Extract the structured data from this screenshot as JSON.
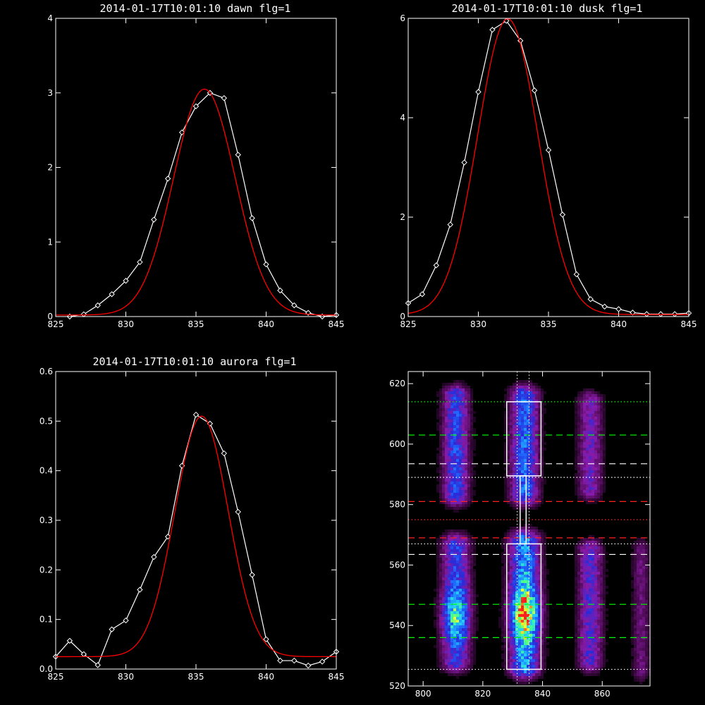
{
  "chart_data": [
    {
      "type": "line",
      "title": "2014-01-17T10:01:10 dawn flg=1",
      "xlim": [
        825,
        845
      ],
      "ylim": [
        0,
        4
      ],
      "xticks": [
        825,
        830,
        835,
        840,
        845
      ],
      "yticks": [
        0,
        1,
        2,
        3,
        4
      ],
      "series": [
        {
          "color": "#ffffff",
          "marker": "diamond",
          "x": [
            826,
            827,
            828,
            829,
            830,
            831,
            832,
            833,
            834,
            835,
            836,
            837,
            838,
            839,
            840,
            841,
            842,
            843,
            844,
            845
          ],
          "y": [
            0.0,
            0.03,
            0.15,
            0.3,
            0.48,
            0.73,
            1.3,
            1.85,
            2.47,
            2.82,
            3.0,
            2.93,
            2.17,
            1.32,
            0.7,
            0.35,
            0.15,
            0.05,
            0.0,
            0.02
          ]
        },
        {
          "color": "#ff0000",
          "marker": "none",
          "gaussian": {
            "amplitude": 3.03,
            "center": 835.6,
            "sigma": 2.2,
            "baseline": 0.02
          }
        }
      ]
    },
    {
      "type": "line",
      "title": "2014-01-17T10:01:10 dusk flg=1",
      "xlim": [
        825,
        845
      ],
      "ylim": [
        0,
        6
      ],
      "xticks": [
        825,
        830,
        835,
        840,
        845
      ],
      "yticks": [
        0,
        2,
        4,
        6
      ],
      "series": [
        {
          "color": "#ffffff",
          "marker": "diamond",
          "x": [
            825,
            826,
            827,
            828,
            829,
            830,
            831,
            832,
            833,
            834,
            835,
            836,
            837,
            838,
            839,
            840,
            841,
            842,
            843,
            844,
            845
          ],
          "y": [
            0.27,
            0.45,
            1.03,
            1.85,
            3.1,
            4.52,
            5.77,
            5.95,
            5.55,
            4.55,
            3.35,
            2.05,
            0.85,
            0.35,
            0.2,
            0.15,
            0.08,
            0.05,
            0.05,
            0.05,
            0.07
          ]
        },
        {
          "color": "#ff0000",
          "marker": "none",
          "gaussian": {
            "amplitude": 5.95,
            "center": 832.1,
            "sigma": 2.15,
            "baseline": 0.04
          }
        }
      ]
    },
    {
      "type": "line",
      "title": "2014-01-17T10:01:10 aurora flg=1",
      "xlim": [
        825,
        845
      ],
      "ylim": [
        0,
        0.6
      ],
      "xticks": [
        825,
        830,
        835,
        840,
        845
      ],
      "yticks": [
        0,
        0.1,
        0.2,
        0.3,
        0.4,
        0.5,
        0.6
      ],
      "series": [
        {
          "color": "#ffffff",
          "marker": "diamond",
          "x": [
            825,
            826,
            827,
            828,
            829,
            830,
            831,
            832,
            833,
            834,
            835,
            836,
            837,
            838,
            839,
            840,
            841,
            842,
            843,
            844,
            845
          ],
          "y": [
            0.025,
            0.057,
            0.03,
            0.008,
            0.08,
            0.098,
            0.16,
            0.226,
            0.267,
            0.41,
            0.513,
            0.495,
            0.435,
            0.317,
            0.19,
            0.06,
            0.017,
            0.017,
            0.007,
            0.015,
            0.035
          ]
        },
        {
          "color": "#ff0000",
          "marker": "none",
          "gaussian": {
            "amplitude": 0.485,
            "center": 835.4,
            "sigma": 1.9,
            "baseline": 0.025
          }
        }
      ]
    },
    {
      "type": "heatmap",
      "title": "",
      "xlim": [
        795,
        876
      ],
      "ylim": [
        520,
        624
      ],
      "xticks": [
        800,
        820,
        840,
        860
      ],
      "yticks": [
        520,
        540,
        560,
        580,
        600,
        620
      ],
      "colormap": [
        "#000000",
        "#4b0b52",
        "#8a1aa8",
        "#2a2ad8",
        "#1e6bff",
        "#20c8ff",
        "#40ff90",
        "#ffff20",
        "#ff2020"
      ],
      "emission_bands": [
        {
          "x_center": 811,
          "x_width": 3.0,
          "y_from": 583,
          "y_to": 616,
          "peak": 0.55
        },
        {
          "x_center": 811,
          "x_width": 3.2,
          "y_from": 528,
          "y_to": 567,
          "peak": 0.72
        },
        {
          "x_center": 834,
          "x_width": 3.2,
          "y_from": 583,
          "y_to": 616,
          "peak": 0.62
        },
        {
          "x_center": 834,
          "x_width": 3.4,
          "y_from": 526,
          "y_to": 568,
          "peak": 1.0
        },
        {
          "x_center": 856,
          "x_width": 2.8,
          "y_from": 585,
          "y_to": 614,
          "peak": 0.28
        },
        {
          "x_center": 856,
          "x_width": 2.8,
          "y_from": 528,
          "y_to": 565,
          "peak": 0.33
        },
        {
          "x_center": 873,
          "x_width": 2.0,
          "y_from": 525,
          "y_to": 565,
          "peak": 0.18
        }
      ],
      "hlines": [
        {
          "y": 614,
          "color": "#00ff00",
          "style": "dotted"
        },
        {
          "y": 603,
          "color": "#00ff00",
          "style": "dashed"
        },
        {
          "y": 593.5,
          "color": "#ffffff",
          "style": "dashed"
        },
        {
          "y": 589,
          "color": "#ffffff",
          "style": "dotted"
        },
        {
          "y": 581,
          "color": "#ff2020",
          "style": "dashed"
        },
        {
          "y": 575,
          "color": "#ff2020",
          "style": "dotted"
        },
        {
          "y": 569,
          "color": "#ff2020",
          "style": "dashed"
        },
        {
          "y": 567,
          "color": "#ffffff",
          "style": "dotted"
        },
        {
          "y": 563.5,
          "color": "#ffffff",
          "style": "dashed"
        },
        {
          "y": 547,
          "color": "#00ff00",
          "style": "dashed"
        },
        {
          "y": 536,
          "color": "#00ff00",
          "style": "dashed"
        },
        {
          "y": 525.5,
          "color": "#ffffff",
          "style": "dotted"
        }
      ],
      "vlines": [
        {
          "x": 831.5,
          "color": "#ffffff",
          "style": "dotted"
        },
        {
          "x": 835.5,
          "color": "#ffffff",
          "style": "dotted"
        }
      ],
      "boxes": [
        {
          "x0": 828,
          "x1": 839.5,
          "y0": 589.5,
          "y1": 614
        },
        {
          "x0": 828,
          "x1": 839.5,
          "y0": 525.5,
          "y1": 567
        },
        {
          "x0": 832.5,
          "x1": 834.5,
          "y0": 567,
          "y1": 589.5
        }
      ]
    }
  ]
}
